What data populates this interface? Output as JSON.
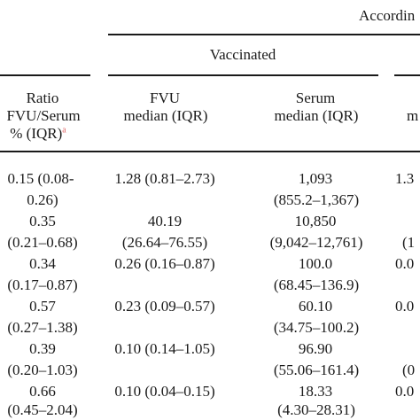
{
  "header": {
    "top_group": "Accordin",
    "vaccinated": "Vaccinated",
    "ratio_line1": "Ratio",
    "ratio_line2": "FVU/Serum",
    "ratio_line3": "% (IQR)",
    "ratio_footnote": "a",
    "fvu_line1": "FVU",
    "fvu_line2": "median (IQR)",
    "serum_line1": "Serum",
    "serum_line2": "median (IQR)",
    "cut_line2": "m"
  },
  "rows": [
    {
      "ratio_a": "0.15 (0.08-",
      "ratio_b": "0.26)",
      "fvu_a": "1.28 (0.81–2.73)",
      "fvu_b": "",
      "serum_a": "1,093",
      "serum_b": "(855.2–1,367)",
      "cut_a": "1.3",
      "cut_b": ""
    },
    {
      "ratio_a": "0.35",
      "ratio_b": "(0.21–0.68)",
      "fvu_a": "40.19",
      "fvu_b": "(26.64–76.55)",
      "serum_a": "10,850",
      "serum_b": "(9,042–12,761)",
      "cut_a": "",
      "cut_b": "(1"
    },
    {
      "ratio_a": "0.34",
      "ratio_b": "(0.17–0.87)",
      "fvu_a": "0.26 (0.16–0.87)",
      "fvu_b": "",
      "serum_a": "100.0",
      "serum_b": "(68.45–136.9)",
      "cut_a": "0.0",
      "cut_b": ""
    },
    {
      "ratio_a": "0.57",
      "ratio_b": "(0.27–1.38)",
      "fvu_a": "0.23 (0.09–0.57)",
      "fvu_b": "",
      "serum_a": "60.10",
      "serum_b": "(34.75–100.2)",
      "cut_a": "0.0",
      "cut_b": ""
    },
    {
      "ratio_a": "0.39",
      "ratio_b": "(0.20–1.03)",
      "fvu_a": "0.10 (0.14–1.05)",
      "fvu_b": "",
      "serum_a": "96.90",
      "serum_b": "(55.06–161.4)",
      "cut_a": "",
      "cut_b": "(0"
    },
    {
      "ratio_a": "0.66",
      "ratio_b": "(0.45–2.04)",
      "fvu_a": "0.10 (0.04–0.15)",
      "fvu_b": "",
      "serum_a": "18.33",
      "serum_b": "(4.30–28.31)",
      "cut_a": "0.0",
      "cut_b": ""
    }
  ]
}
